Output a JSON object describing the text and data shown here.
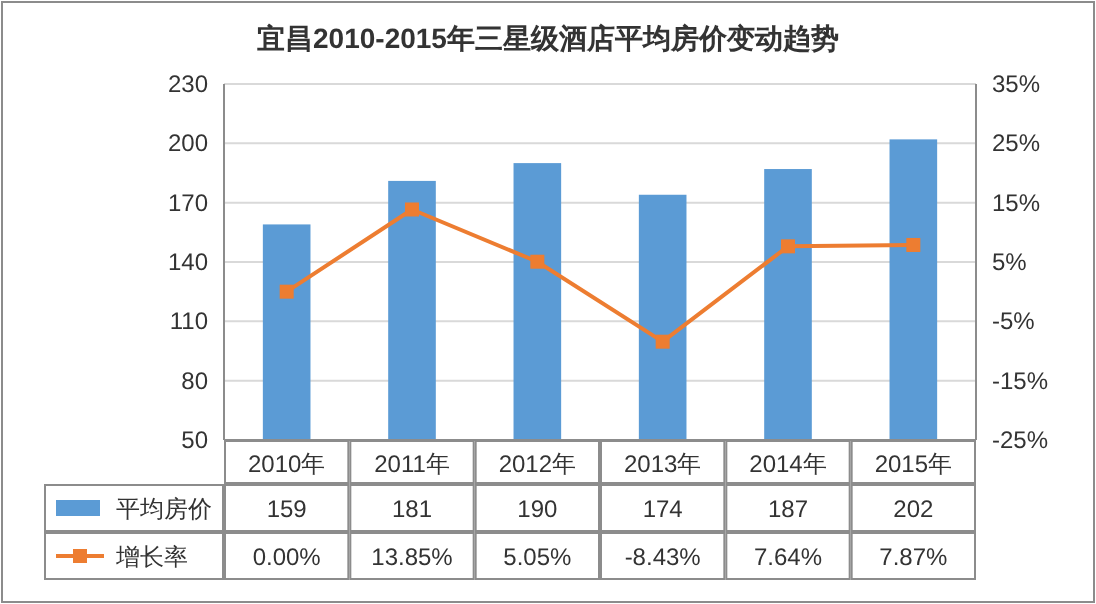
{
  "chart_data": {
    "type": "bar",
    "title": "宜昌2010-2015年三星级酒店平均房价变动趋势",
    "categories": [
      "2010年",
      "2011年",
      "2012年",
      "2013年",
      "2014年",
      "2015年"
    ],
    "series": [
      {
        "name": "平均房价",
        "color": "#5b9bd5",
        "values": [
          159,
          181,
          190,
          174,
          187,
          202
        ],
        "value_labels": [
          "159",
          "181",
          "190",
          "174",
          "187",
          "202"
        ]
      },
      {
        "name": "增长率",
        "type": "line",
        "axis": "y2",
        "color": "#ed7d31",
        "values": [
          0,
          13.85,
          5.05,
          -8.43,
          7.64,
          7.87
        ],
        "value_labels": [
          "0.00%",
          "13.85%",
          "5.05%",
          "-8.43%",
          "7.64%",
          "7.87%"
        ]
      }
    ],
    "ylim": [
      50,
      230
    ],
    "yticks": [
      50,
      80,
      110,
      140,
      170,
      200,
      230
    ],
    "y2lim": [
      -25,
      35
    ],
    "y2ticks": [
      {
        "value": -25,
        "label": "-25%"
      },
      {
        "value": -15,
        "label": "-15%"
      },
      {
        "value": -5,
        "label": "-5%"
      },
      {
        "value": 5,
        "label": "5%"
      },
      {
        "value": 15,
        "label": "15%"
      },
      {
        "value": 25,
        "label": "25%"
      },
      {
        "value": 35,
        "label": "35%"
      }
    ],
    "grid": "y",
    "legend": "bottom",
    "marker": "square",
    "line_style": "solid"
  }
}
